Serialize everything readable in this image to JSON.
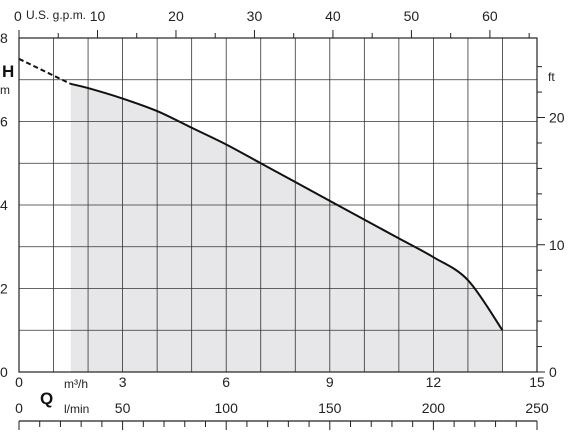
{
  "chart_data": {
    "type": "area",
    "title": "",
    "x_primary": {
      "unit": "m³/h",
      "range": [
        0,
        15
      ],
      "ticks": [
        0,
        3,
        6,
        9,
        12,
        15
      ],
      "tick_labels": [
        "0",
        "3",
        "6",
        "9",
        "12",
        "15"
      ],
      "grid_step": 1
    },
    "x_secondary_lpm": {
      "symbol": "Q",
      "unit": "l/min",
      "range": [
        0,
        250
      ],
      "ticks": [
        0,
        50,
        100,
        150,
        200,
        250
      ],
      "tick_labels": [
        "0",
        "50",
        "100",
        "150",
        "200",
        "250"
      ]
    },
    "x_top_gpm": {
      "unit_label": "U.S. g.p.m.",
      "range": [
        0,
        66
      ],
      "ticks": [
        0,
        10,
        20,
        30,
        40,
        50,
        60
      ],
      "tick_labels": [
        "0",
        "10",
        "20",
        "30",
        "40",
        "50",
        "60"
      ]
    },
    "y_left": {
      "symbol": "H",
      "unit": "m",
      "range": [
        0,
        8
      ],
      "ticks": [
        0,
        2,
        4,
        6,
        8
      ],
      "tick_labels": [
        "0",
        "2",
        "4",
        "6",
        "8"
      ],
      "grid_step": 1
    },
    "y_right": {
      "unit": "ft",
      "range": [
        0,
        26.25
      ],
      "ticks": [
        0,
        10,
        20
      ],
      "tick_labels": [
        "0",
        "10",
        "20"
      ]
    },
    "series": [
      {
        "style": "solid",
        "x": [
          1.5,
          2,
          3,
          4,
          5,
          6,
          7,
          8,
          9,
          10,
          11,
          12,
          13,
          14
        ],
        "y": [
          6.9,
          6.8,
          6.55,
          6.25,
          5.85,
          5.45,
          5.0,
          4.55,
          4.1,
          3.65,
          3.2,
          2.75,
          2.2,
          1.0
        ]
      },
      {
        "style": "dashed",
        "x": [
          0,
          1.5
        ],
        "y": [
          7.5,
          6.9
        ]
      }
    ],
    "shaded_region": {
      "x_start": 1.5,
      "x_end": 14,
      "color": "#e7e7ea"
    },
    "grid": true
  }
}
